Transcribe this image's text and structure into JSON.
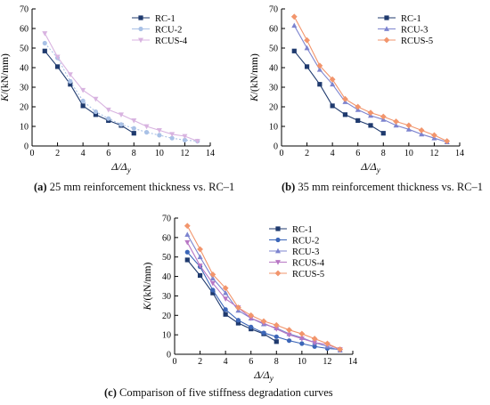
{
  "captions": {
    "a": {
      "label": "(a)",
      "text": " 25 mm reinforcement thickness vs. RC–1"
    },
    "b": {
      "label": "(b)",
      "text": " 35 mm reinforcement thickness vs. RC–1"
    },
    "c": {
      "label": "(c)",
      "text": " Comparison of five stiffness degradation curves"
    }
  },
  "colors": {
    "RC-1": "#1f3a6e",
    "RCU-2": "#3c66b8",
    "RCU-3": "#7d84cf",
    "RCUS-4": "#b877c4",
    "RCUS-5": "#f2956c",
    "RCU-2-faded": "#a9c1e6",
    "RCUS-4-faded": "#d8b3e0",
    "axis": "#000000"
  },
  "chart_data": [
    {
      "id": "a",
      "type": "line",
      "ylabel": "K/(kN/mm)",
      "xlabel": "Δ/Δy",
      "xlim": [
        0,
        14
      ],
      "ylim": [
        0,
        70
      ],
      "xticks": [
        0,
        2,
        4,
        6,
        8,
        10,
        12,
        14
      ],
      "yticks": [
        0,
        10,
        20,
        30,
        40,
        50,
        60,
        70
      ],
      "legend": "top-right",
      "series": [
        {
          "name": "RC-1",
          "marker": "square",
          "x": [
            1,
            2,
            3,
            4,
            5,
            6,
            7,
            8
          ],
          "y": [
            48.5,
            40.5,
            31.5,
            20.5,
            16,
            13,
            10.5,
            6.5
          ]
        },
        {
          "name": "RCU-2",
          "marker": "circle",
          "x": [
            1,
            2,
            3,
            4,
            5,
            6,
            7,
            8,
            9,
            10,
            11,
            12,
            13
          ],
          "y": [
            52.5,
            45,
            33,
            23,
            17.5,
            14,
            11,
            9,
            7,
            5.5,
            4,
            3,
            2.5
          ]
        },
        {
          "name": "RCUS-4",
          "marker": "tri-down",
          "x": [
            1,
            2,
            3,
            4,
            5,
            6,
            7,
            8,
            9,
            10,
            11,
            12,
            13
          ],
          "y": [
            57.5,
            45.5,
            36.5,
            28.5,
            24,
            18.5,
            16,
            13,
            10,
            8,
            6,
            5,
            2.5
          ]
        }
      ]
    },
    {
      "id": "b",
      "type": "line",
      "ylabel": "K/(kN/mm)",
      "xlabel": "Δ/Δy",
      "xlim": [
        0,
        14
      ],
      "ylim": [
        0,
        70
      ],
      "xticks": [
        0,
        2,
        4,
        6,
        8,
        10,
        12,
        14
      ],
      "yticks": [
        0,
        10,
        20,
        30,
        40,
        50,
        60,
        70
      ],
      "legend": "top-right",
      "series": [
        {
          "name": "RC-1",
          "marker": "square",
          "x": [
            1,
            2,
            3,
            4,
            5,
            6,
            7,
            8
          ],
          "y": [
            48.5,
            40.5,
            31.5,
            20.5,
            16,
            13,
            10.5,
            6.5
          ]
        },
        {
          "name": "RCU-3",
          "marker": "tri-up",
          "x": [
            1,
            2,
            3,
            4,
            5,
            6,
            7,
            8,
            9,
            10,
            11,
            12,
            13
          ],
          "y": [
            61.5,
            50,
            39,
            31.5,
            22.5,
            18.5,
            15.5,
            13.5,
            10.5,
            8.5,
            6,
            4,
            2
          ]
        },
        {
          "name": "RCUS-5",
          "marker": "diamond",
          "x": [
            1,
            2,
            3,
            4,
            5,
            6,
            7,
            8,
            9,
            10,
            11,
            12,
            13
          ],
          "y": [
            66,
            54,
            41,
            34,
            24,
            20,
            17,
            15,
            12.5,
            10.5,
            8,
            5.5,
            2.5
          ]
        }
      ]
    },
    {
      "id": "c",
      "type": "line",
      "ylabel": "K/(kN/mm)",
      "xlabel": "Δ/Δy",
      "xlim": [
        0,
        14
      ],
      "ylim": [
        0,
        70
      ],
      "xticks": [
        0,
        2,
        4,
        6,
        8,
        10,
        12,
        14
      ],
      "yticks": [
        0,
        10,
        20,
        30,
        40,
        50,
        60,
        70
      ],
      "legend": "top-right",
      "series": [
        {
          "name": "RC-1",
          "marker": "square",
          "x": [
            1,
            2,
            3,
            4,
            5,
            6,
            7,
            8
          ],
          "y": [
            48.5,
            40.5,
            31.5,
            20.5,
            16,
            13,
            10.5,
            6.5
          ]
        },
        {
          "name": "RCU-2",
          "marker": "circle",
          "x": [
            1,
            2,
            3,
            4,
            5,
            6,
            7,
            8,
            9,
            10,
            11,
            12,
            13
          ],
          "y": [
            52.5,
            45,
            33,
            23,
            17.5,
            14,
            11,
            9,
            7,
            5.5,
            4,
            3,
            2.5
          ]
        },
        {
          "name": "RCU-3",
          "marker": "tri-up",
          "x": [
            1,
            2,
            3,
            4,
            5,
            6,
            7,
            8,
            9,
            10,
            11,
            12,
            13
          ],
          "y": [
            61.5,
            50,
            39,
            31.5,
            22.5,
            18.5,
            15.5,
            13.5,
            10.5,
            8.5,
            6,
            4,
            2
          ]
        },
        {
          "name": "RCUS-4",
          "marker": "tri-down",
          "x": [
            1,
            2,
            3,
            4,
            5,
            6,
            7,
            8,
            9,
            10,
            11,
            12,
            13
          ],
          "y": [
            57.5,
            45.5,
            36.5,
            28.5,
            24,
            18.5,
            16,
            13,
            10,
            8,
            6,
            5,
            2.5
          ]
        },
        {
          "name": "RCUS-5",
          "marker": "diamond",
          "x": [
            1,
            2,
            3,
            4,
            5,
            6,
            7,
            8,
            9,
            10,
            11,
            12,
            13
          ],
          "y": [
            66,
            54,
            41,
            34,
            24,
            20,
            17,
            15,
            12.5,
            10.5,
            8,
            5.5,
            2.5
          ]
        }
      ]
    }
  ]
}
